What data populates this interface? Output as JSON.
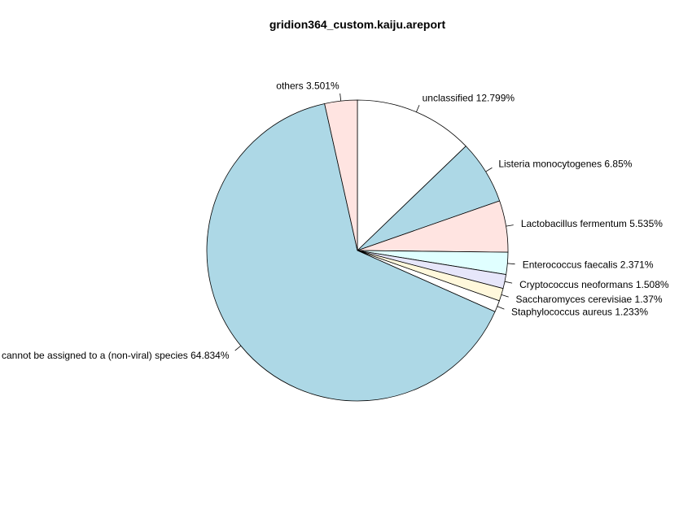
{
  "chart_data": {
    "type": "pie",
    "title": "gridion364_custom.kaiju.areport",
    "direction": "clockwise",
    "start_angle_deg": 90,
    "slices": [
      {
        "label": "unclassified 12.799%",
        "value": 12.799,
        "color": "#ffffff"
      },
      {
        "label": "Listeria monocytogenes 6.85%",
        "value": 6.85,
        "color": "#add8e6"
      },
      {
        "label": "Lactobacillus fermentum 5.535%",
        "value": 5.535,
        "color": "#ffe4e1"
      },
      {
        "label": "Enterococcus faecalis 2.371%",
        "value": 2.371,
        "color": "#e0ffff"
      },
      {
        "label": "Cryptococcus neoformans 1.508%",
        "value": 1.508,
        "color": "#e6e6fa"
      },
      {
        "label": "Saccharomyces cerevisiae 1.37%",
        "value": 1.37,
        "color": "#fff8dc"
      },
      {
        "label": "Staphylococcus aureus 1.233%",
        "value": 1.233,
        "color": "#ffffff"
      },
      {
        "label": "cannot be assigned to a (non-viral) species 64.834%",
        "value": 64.834,
        "color": "#add8e6"
      },
      {
        "label": "others 3.501%",
        "value": 3.501,
        "color": "#ffe4e1"
      }
    ]
  }
}
